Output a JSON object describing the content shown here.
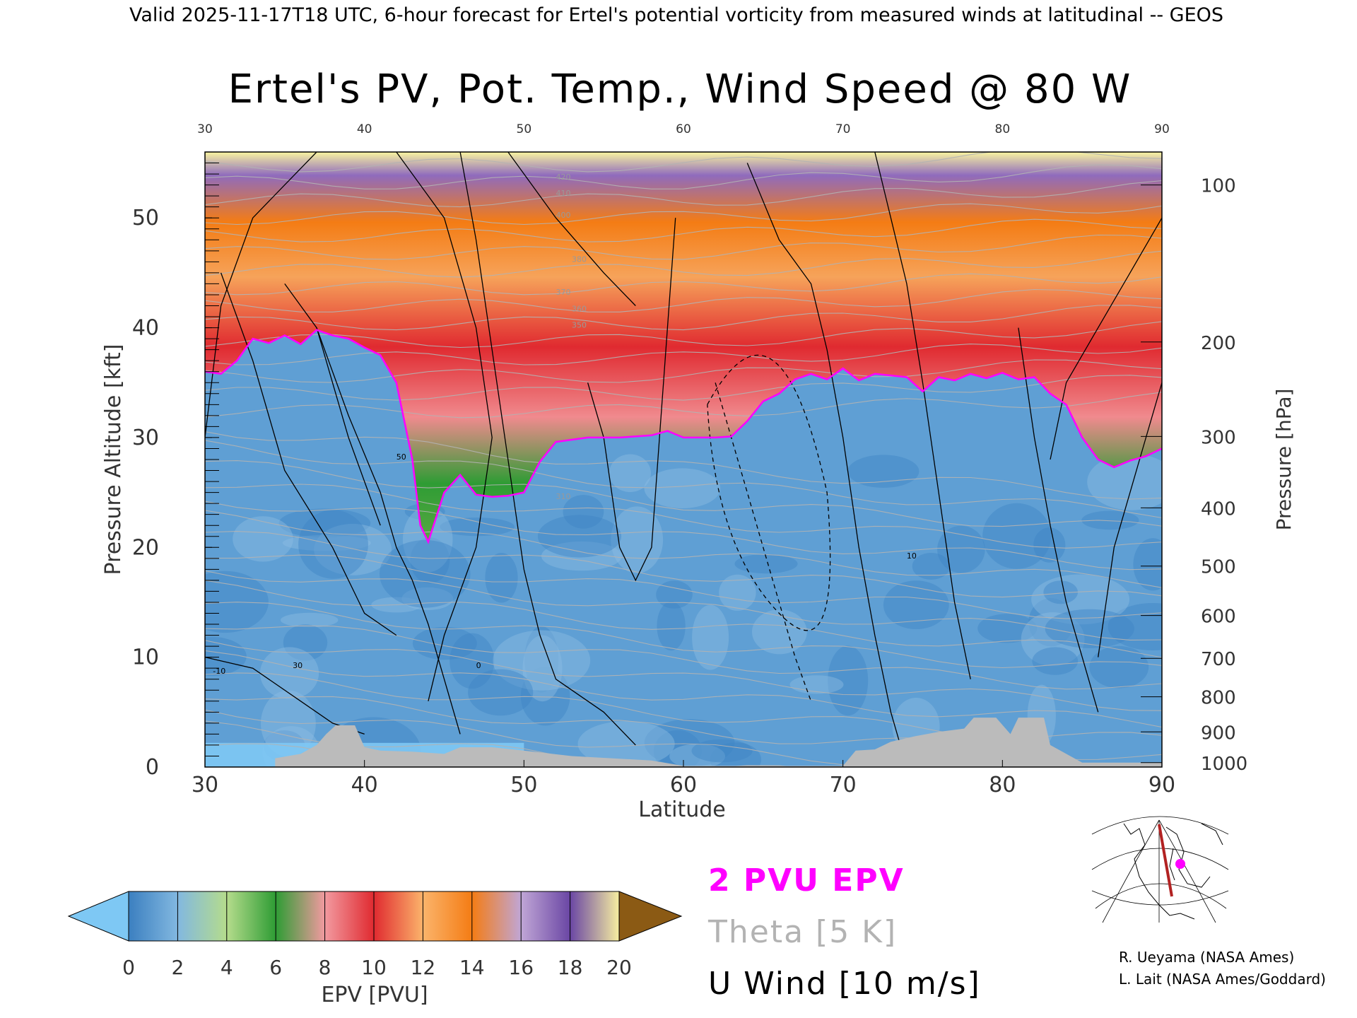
{
  "header": {
    "valid_line": "Valid 2025-11-17T18 UTC, 6-hour forecast for Ertel's potential vorticity from measured winds at latitudinal -- GEOS"
  },
  "chart_data": {
    "type": "heatmap",
    "title": "Ertel's PV, Pot. Temp., Wind Speed @ 80 W",
    "xlabel": "Latitude",
    "ylabel": "Pressure Altitude [kft]",
    "y2label": "Pressure [hPa]",
    "xlim": [
      30,
      90
    ],
    "ylim": [
      0,
      56
    ],
    "x_ticks": [
      "30",
      "40",
      "50",
      "60",
      "70",
      "80",
      "90"
    ],
    "y_ticks": [
      "0",
      "10",
      "20",
      "30",
      "40",
      "50"
    ],
    "pressure_ticks": [
      {
        "label": "100",
        "kft": 53.0
      },
      {
        "label": "200",
        "kft": 38.7
      },
      {
        "label": "300",
        "kft": 30.1
      },
      {
        "label": "400",
        "kft": 23.6
      },
      {
        "label": "500",
        "kft": 18.3
      },
      {
        "label": "600",
        "kft": 13.8
      },
      {
        "label": "700",
        "kft": 9.9
      },
      {
        "label": "800",
        "kft": 6.4
      },
      {
        "label": "900",
        "kft": 3.2
      },
      {
        "label": "1000",
        "kft": 0.4
      }
    ],
    "tropopause_2pvu_kft": [
      [
        30,
        36.0
      ],
      [
        31,
        35.8
      ],
      [
        32,
        37.0
      ],
      [
        33,
        39.0
      ],
      [
        34,
        38.6
      ],
      [
        35,
        39.3
      ],
      [
        36,
        38.5
      ],
      [
        37,
        39.8
      ],
      [
        38,
        39.3
      ],
      [
        39,
        39.0
      ],
      [
        40,
        38.2
      ],
      [
        41,
        37.5
      ],
      [
        42,
        35.0
      ],
      [
        43,
        28.0
      ],
      [
        43.5,
        22.0
      ],
      [
        44,
        20.5
      ],
      [
        45,
        25.0
      ],
      [
        46,
        26.6
      ],
      [
        47,
        24.8
      ],
      [
        48,
        24.6
      ],
      [
        49,
        24.7
      ],
      [
        50,
        25.0
      ],
      [
        51,
        27.8
      ],
      [
        52,
        29.6
      ],
      [
        54,
        30.0
      ],
      [
        56,
        30.0
      ],
      [
        58,
        30.2
      ],
      [
        59,
        30.6
      ],
      [
        60,
        30.0
      ],
      [
        62,
        30.0
      ],
      [
        63,
        30.1
      ],
      [
        64,
        31.5
      ],
      [
        65,
        33.3
      ],
      [
        66,
        34.0
      ],
      [
        67,
        35.3
      ],
      [
        68,
        35.8
      ],
      [
        69,
        35.3
      ],
      [
        70,
        36.3
      ],
      [
        71,
        35.2
      ],
      [
        72,
        35.8
      ],
      [
        74,
        35.5
      ],
      [
        75,
        34.2
      ],
      [
        76,
        35.5
      ],
      [
        77,
        35.2
      ],
      [
        78,
        35.8
      ],
      [
        79,
        35.4
      ],
      [
        80,
        35.9
      ],
      [
        81,
        35.3
      ],
      [
        82,
        35.5
      ],
      [
        83,
        34.0
      ],
      [
        84,
        33.0
      ],
      [
        85,
        30.0
      ],
      [
        86,
        28.0
      ],
      [
        87,
        27.3
      ],
      [
        88,
        27.9
      ],
      [
        89,
        28.3
      ],
      [
        90,
        29.0
      ]
    ],
    "theta_contour_labels": [
      "310",
      "350",
      "360",
      "370",
      "380",
      "400",
      "410",
      "420"
    ],
    "u_wind_contour_labels": [
      "-10",
      "0",
      "10",
      "30",
      "50"
    ],
    "surface_topography_kft": [
      [
        34.4,
        0.8
      ],
      [
        36,
        1.2
      ],
      [
        37,
        2.0
      ],
      [
        37.6,
        3.0
      ],
      [
        38.2,
        3.8
      ],
      [
        39.4,
        3.8
      ],
      [
        40,
        1.8
      ],
      [
        41,
        1.5
      ],
      [
        43,
        1.4
      ],
      [
        45,
        1.2
      ],
      [
        46,
        1.8
      ],
      [
        48,
        1.8
      ],
      [
        50,
        1.5
      ],
      [
        53,
        1.0
      ],
      [
        58,
        0.6
      ],
      [
        60,
        0.1
      ],
      [
        70,
        0.1
      ],
      [
        70.8,
        1.5
      ],
      [
        72,
        1.6
      ],
      [
        73,
        2.3
      ],
      [
        74.5,
        2.8
      ],
      [
        76,
        3.2
      ],
      [
        77.6,
        3.5
      ],
      [
        78.2,
        4.5
      ],
      [
        79.6,
        4.5
      ],
      [
        80.5,
        3.0
      ],
      [
        81,
        4.5
      ],
      [
        82.6,
        4.5
      ],
      [
        83,
        2.0
      ],
      [
        85,
        0.4
      ],
      [
        90,
        0.4
      ]
    ],
    "grid": false,
    "colorbar": {
      "label": "EPV [PVU]",
      "ticks": [
        "0",
        "2",
        "4",
        "6",
        "8",
        "10",
        "12",
        "14",
        "16",
        "18",
        "20"
      ],
      "range": [
        0,
        20
      ]
    },
    "legend_entries": [
      {
        "label": "2 PVU EPV",
        "color": "#ff00ff"
      },
      {
        "label": "Theta [5 K]",
        "color": "#b3b3b3"
      },
      {
        "label": "U Wind [10 m/s]",
        "color": "#000000"
      }
    ],
    "colors": {
      "tropopause": "#ff00ff",
      "theta": "#b3b3b3",
      "wind": "#000000",
      "topography": "#bbbbbb",
      "path": "#b22222"
    },
    "credits": [
      "R. Ueyama (NASA Ames)",
      "L. Lait (NASA Ames/Goddard)"
    ]
  }
}
